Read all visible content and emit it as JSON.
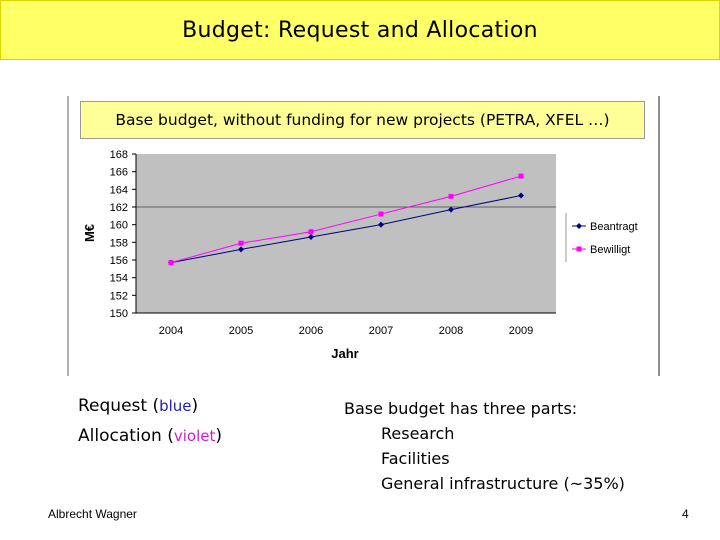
{
  "slide": {
    "title": "Budget: Request and Allocation",
    "chart_caption": "Base budget, without funding for new projects (PETRA, XFEL …)",
    "left_line1_prefix": "Request (",
    "left_line1_color": "blue",
    "left_line1_suffix": ")",
    "left_line2_prefix": "Allocation (",
    "left_line2_color": "violet",
    "left_line2_suffix": ")",
    "right_heading": "Base budget has three parts:",
    "right_items": [
      "Research",
      "Facilities",
      "General infrastructure (~35%)"
    ],
    "author": "Albrecht Wagner",
    "page_number": "4"
  },
  "colors": {
    "title_bg": "#ffff66",
    "caption_bg": "#ffff99",
    "plot_bg": "#c0c0c0",
    "beantragt": "#000080",
    "bewilligt": "#ff00ff"
  },
  "chart_data": {
    "type": "line",
    "categories": [
      "2004",
      "2005",
      "2006",
      "2007",
      "2008",
      "2009"
    ],
    "series": [
      {
        "name": "Beantragt",
        "values": [
          155.7,
          157.2,
          158.6,
          160.0,
          161.7,
          163.3
        ]
      },
      {
        "name": "Bewilligt",
        "values": [
          155.7,
          157.9,
          159.2,
          161.2,
          163.2,
          165.5
        ]
      }
    ],
    "xlabel": "Jahr",
    "ylabel": "M€",
    "ylim": [
      150,
      168
    ],
    "yticks": [
      150,
      152,
      154,
      156,
      158,
      160,
      162,
      164,
      166,
      168
    ],
    "grid": "horizontal line at 162",
    "legend": "right"
  }
}
